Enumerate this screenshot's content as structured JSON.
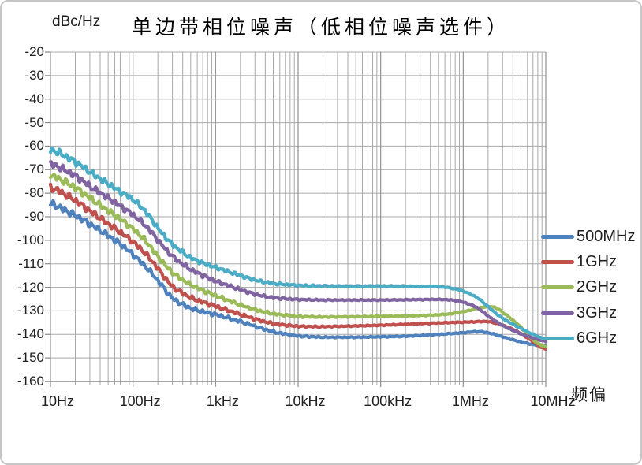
{
  "title": "单边带相位噪声（低相位噪声选件）",
  "y_axis_unit": "dBc/Hz",
  "x_axis_title": "频偏",
  "chart_data": {
    "type": "line",
    "x_scale": "log",
    "x_range_hz": [
      10,
      10000000
    ],
    "x_tick_labels": [
      "10Hz",
      "100Hz",
      "1kHz",
      "10kHz",
      "100kHz",
      "1MHz",
      "10MHz"
    ],
    "y_range_dbc": [
      -160,
      -20
    ],
    "y_tick_step": 10,
    "y_tick_labels": [
      "-20",
      "-30",
      "-40",
      "-50",
      "-60",
      "-70",
      "-80",
      "-90",
      "-100",
      "-110",
      "-120",
      "-130",
      "-140",
      "-150",
      "-160"
    ],
    "grid": {
      "minor_color": "#a8a8a8",
      "major_color": "#909090",
      "axis_color": "#8a8a8a",
      "minor_log_divisions": true
    },
    "legend_position": "right",
    "series": [
      {
        "name": "500MHz",
        "color": "#4F81BD",
        "points": [
          [
            10,
            -84
          ],
          [
            20,
            -89.5
          ],
          [
            30,
            -93
          ],
          [
            50,
            -98
          ],
          [
            70,
            -101.5
          ],
          [
            100,
            -106
          ],
          [
            150,
            -112
          ],
          [
            200,
            -117
          ],
          [
            300,
            -125
          ],
          [
            500,
            -129
          ],
          [
            700,
            -130.3
          ],
          [
            1000,
            -131.5
          ],
          [
            2000,
            -134.5
          ],
          [
            3000,
            -136.5
          ],
          [
            5000,
            -139
          ],
          [
            10000,
            -140.7
          ],
          [
            20000,
            -141.2
          ],
          [
            50000,
            -141.2
          ],
          [
            100000,
            -141
          ],
          [
            200000,
            -140.8
          ],
          [
            500000,
            -140
          ],
          [
            1000000,
            -139.3
          ],
          [
            1500000,
            -138.7
          ],
          [
            2000000,
            -139.2
          ],
          [
            3000000,
            -141
          ],
          [
            5000000,
            -143.3
          ],
          [
            7000000,
            -144.3
          ],
          [
            10000000,
            -145.2
          ]
        ]
      },
      {
        "name": "1GHz",
        "color": "#C0504D",
        "points": [
          [
            10,
            -77
          ],
          [
            20,
            -83
          ],
          [
            30,
            -87.5
          ],
          [
            50,
            -93
          ],
          [
            70,
            -96.5
          ],
          [
            100,
            -100.5
          ],
          [
            150,
            -106.5
          ],
          [
            200,
            -112
          ],
          [
            300,
            -120
          ],
          [
            500,
            -124.5
          ],
          [
            700,
            -126.3
          ],
          [
            1000,
            -128
          ],
          [
            2000,
            -131.5
          ],
          [
            3000,
            -133.5
          ],
          [
            5000,
            -135.5
          ],
          [
            10000,
            -136.6
          ],
          [
            20000,
            -136.7
          ],
          [
            50000,
            -136.4
          ],
          [
            100000,
            -136.1
          ],
          [
            200000,
            -135.7
          ],
          [
            500000,
            -135.1
          ],
          [
            1000000,
            -134.8
          ],
          [
            2000000,
            -134.4
          ],
          [
            3000000,
            -136
          ],
          [
            4000000,
            -137.8
          ],
          [
            5000000,
            -139.5
          ],
          [
            7000000,
            -143
          ],
          [
            10000000,
            -147
          ]
        ]
      },
      {
        "name": "2GHz",
        "color": "#9BBB59",
        "points": [
          [
            10,
            -72
          ],
          [
            20,
            -77.5
          ],
          [
            30,
            -82
          ],
          [
            50,
            -87.5
          ],
          [
            70,
            -91
          ],
          [
            100,
            -95
          ],
          [
            150,
            -101
          ],
          [
            200,
            -107
          ],
          [
            300,
            -114
          ],
          [
            500,
            -119
          ],
          [
            700,
            -121.3
          ],
          [
            1000,
            -123.5
          ],
          [
            2000,
            -127.5
          ],
          [
            3000,
            -129.5
          ],
          [
            5000,
            -131.3
          ],
          [
            10000,
            -132.4
          ],
          [
            20000,
            -132.6
          ],
          [
            50000,
            -132.5
          ],
          [
            100000,
            -132.3
          ],
          [
            200000,
            -132.2
          ],
          [
            500000,
            -131.7
          ],
          [
            700000,
            -131.3
          ],
          [
            1000000,
            -130.4
          ],
          [
            1500000,
            -128.9
          ],
          [
            2000000,
            -128
          ],
          [
            2500000,
            -128.4
          ],
          [
            3000000,
            -130.5
          ],
          [
            4000000,
            -134
          ],
          [
            5000000,
            -136.8
          ],
          [
            7000000,
            -142.5
          ],
          [
            10000000,
            -146
          ]
        ]
      },
      {
        "name": "3GHz",
        "color": "#8064A2",
        "points": [
          [
            10,
            -67
          ],
          [
            20,
            -72.5
          ],
          [
            30,
            -77
          ],
          [
            50,
            -82
          ],
          [
            70,
            -85.5
          ],
          [
            100,
            -89
          ],
          [
            150,
            -94.5
          ],
          [
            200,
            -100
          ],
          [
            300,
            -107
          ],
          [
            500,
            -112.5
          ],
          [
            700,
            -115
          ],
          [
            1000,
            -117.4
          ],
          [
            2000,
            -121
          ],
          [
            3000,
            -123
          ],
          [
            5000,
            -124.5
          ],
          [
            10000,
            -125.2
          ],
          [
            20000,
            -125.4
          ],
          [
            50000,
            -125.4
          ],
          [
            100000,
            -125.4
          ],
          [
            200000,
            -125.3
          ],
          [
            500000,
            -125.1
          ],
          [
            700000,
            -125.3
          ],
          [
            1000000,
            -126.2
          ],
          [
            1500000,
            -128.5
          ],
          [
            2000000,
            -132.3
          ],
          [
            3000000,
            -136.3
          ],
          [
            5000000,
            -139.8
          ],
          [
            7000000,
            -141.5
          ],
          [
            10000000,
            -143.2
          ]
        ]
      },
      {
        "name": "6GHz",
        "color": "#4BACC6",
        "points": [
          [
            10,
            -61
          ],
          [
            20,
            -66.5
          ],
          [
            30,
            -71
          ],
          [
            50,
            -76
          ],
          [
            70,
            -79.3
          ],
          [
            100,
            -82.5
          ],
          [
            150,
            -88.5
          ],
          [
            200,
            -95
          ],
          [
            300,
            -102
          ],
          [
            500,
            -107.5
          ],
          [
            700,
            -109.7
          ],
          [
            1000,
            -111.5
          ],
          [
            2000,
            -115
          ],
          [
            3000,
            -117
          ],
          [
            5000,
            -118.4
          ],
          [
            10000,
            -119.2
          ],
          [
            20000,
            -119.4
          ],
          [
            50000,
            -119.5
          ],
          [
            100000,
            -119.4
          ],
          [
            200000,
            -119.5
          ],
          [
            500000,
            -119.7
          ],
          [
            700000,
            -120.2
          ],
          [
            1000000,
            -121.5
          ],
          [
            1500000,
            -124.3
          ],
          [
            2000000,
            -128.3
          ],
          [
            3000000,
            -133.3
          ],
          [
            5000000,
            -137.5
          ],
          [
            7000000,
            -140
          ],
          [
            10000000,
            -142.3
          ]
        ]
      }
    ]
  }
}
